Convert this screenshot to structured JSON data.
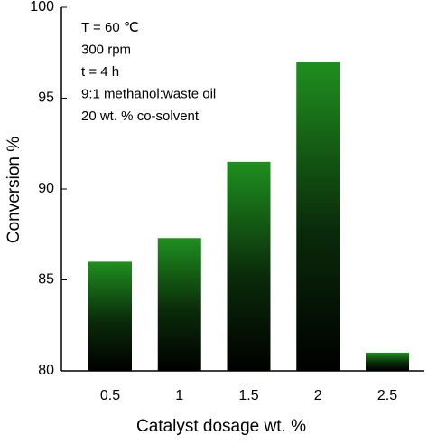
{
  "chart_data": {
    "type": "bar",
    "annotations": [
      "T = 60 ℃",
      "300 rpm",
      "t = 4 h",
      "9:1 methanol:waste oil",
      "20 wt. % co-solvent"
    ],
    "xlabel": "Catalyst dosage wt. %",
    "ylabel": "Conversion %",
    "categories": [
      "0.5",
      "1",
      "1.5",
      "2",
      "2.5"
    ],
    "values": [
      86,
      87.3,
      91.5,
      97,
      81
    ],
    "color": "#1f8f1f",
    "ylim": [
      80,
      100
    ],
    "yticks": [
      80,
      85,
      90,
      95,
      100
    ],
    "grid": false
  }
}
